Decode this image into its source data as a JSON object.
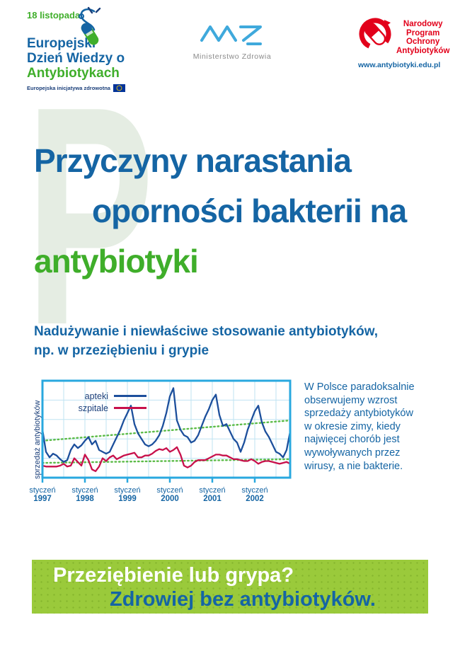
{
  "header": {
    "eaad": {
      "date": "18 listopada",
      "title_line1": "Europejski",
      "title_line2": "Dzień Wiedzy o",
      "title_line3": "Antybiotykach",
      "tagline": "Europejska inicjatywa zdrowotna",
      "icon": "stethoscope-capsule-icon"
    },
    "mz": {
      "name": "Ministerstwo Zdrowia",
      "icon": "mz-zigzag-logo"
    },
    "npoa": {
      "line1": "Narodowy",
      "line2": "Program",
      "line3": "Ochrony",
      "line4": "Antybiotyków",
      "url": "www.antybiotyki.edu.pl",
      "icon": "capsule-arc-logo"
    }
  },
  "title": {
    "watermark_letter": "P",
    "line1": "Przyczyny narastania",
    "line2": "oporności bakterii na",
    "line3": "antybiotyki"
  },
  "subtitle": {
    "line1": "Nadużywanie i niewłaściwe stosowanie antybiotyków,",
    "line2": "np. w przeziębieniu i grypie"
  },
  "aside": {
    "text": "W Polsce paradoksalnie obserwujemy wzrost sprzedaży antybiotyków w okresie zimy, kiedy najwięcej chorób jest wywoływanych przez wirusy, a nie bakterie."
  },
  "banner": {
    "line1": "Przeziębienie lub grypa?",
    "line2": "Zdrowiej bez antybiotyków."
  },
  "chart_data": {
    "type": "line",
    "title": "",
    "xlabel": "",
    "ylabel": "sprzedaż antybiotyków",
    "ylim": [
      0,
      105
    ],
    "grid": true,
    "legend_position": "top-left",
    "x_ticks": [
      {
        "month": "styczeń",
        "year": "1997"
      },
      {
        "month": "styczeń",
        "year": "1998"
      },
      {
        "month": "styczeń",
        "year": "1999"
      },
      {
        "month": "styczeń",
        "year": "2000"
      },
      {
        "month": "styczeń",
        "year": "2001"
      },
      {
        "month": "styczeń",
        "year": "2002"
      }
    ],
    "series": [
      {
        "name": "apteki",
        "color": "#1c4f9c",
        "values": [
          52,
          28,
          22,
          26,
          24,
          20,
          17,
          19,
          30,
          36,
          32,
          35,
          40,
          44,
          36,
          40,
          30,
          28,
          26,
          28,
          36,
          44,
          52,
          62,
          70,
          78,
          58,
          48,
          42,
          36,
          34,
          36,
          40,
          46,
          56,
          70,
          88,
          97,
          62,
          52,
          46,
          44,
          38,
          40,
          46,
          56,
          66,
          74,
          84,
          90,
          68,
          56,
          58,
          50,
          42,
          38,
          28,
          38,
          52,
          62,
          72,
          78,
          60,
          50,
          44,
          36,
          28,
          26,
          22,
          30,
          50
        ]
      },
      {
        "name": "szpitale",
        "color": "#c8104b",
        "values": [
          13,
          12,
          12,
          12,
          12,
          13,
          15,
          12,
          13,
          21,
          17,
          13,
          25,
          19,
          9,
          7,
          12,
          21,
          18,
          22,
          24,
          20,
          22,
          24,
          25,
          26,
          27,
          22,
          22,
          24,
          24,
          26,
          29,
          31,
          30,
          32,
          28,
          30,
          33,
          25,
          13,
          11,
          13,
          17,
          19,
          19,
          19,
          21,
          23,
          25,
          25,
          24,
          24,
          22,
          20,
          20,
          19,
          18,
          18,
          20,
          18,
          15,
          17,
          18,
          18,
          17,
          16,
          15,
          16,
          17,
          15
        ]
      }
    ],
    "trend_lines": [
      {
        "name": "trend-apteki",
        "color": "#5bbb47",
        "style": "dotted",
        "start": 40,
        "end": 62
      },
      {
        "name": "trend-szpitale",
        "color": "#5bbb47",
        "style": "dotted",
        "start": 16,
        "end": 20
      }
    ]
  },
  "colors": {
    "title_blue": "#1565a4",
    "accent_green": "#3fae2a",
    "watermark_green": "#e5ede3",
    "banner_green": "#9aca3b",
    "chart_frame": "#29a8df",
    "chart_grid": "#bfe3f2",
    "apteki_line": "#1c4f9c",
    "szpitale_line": "#c8104b",
    "trend_green": "#5bbb47",
    "npoa_red": "#e2001a",
    "mz_blue": "#3fa9dc",
    "mz_gray": "#8a8a8a",
    "eu_flag_blue": "#003399",
    "eu_star_yellow": "#ffcc00"
  }
}
